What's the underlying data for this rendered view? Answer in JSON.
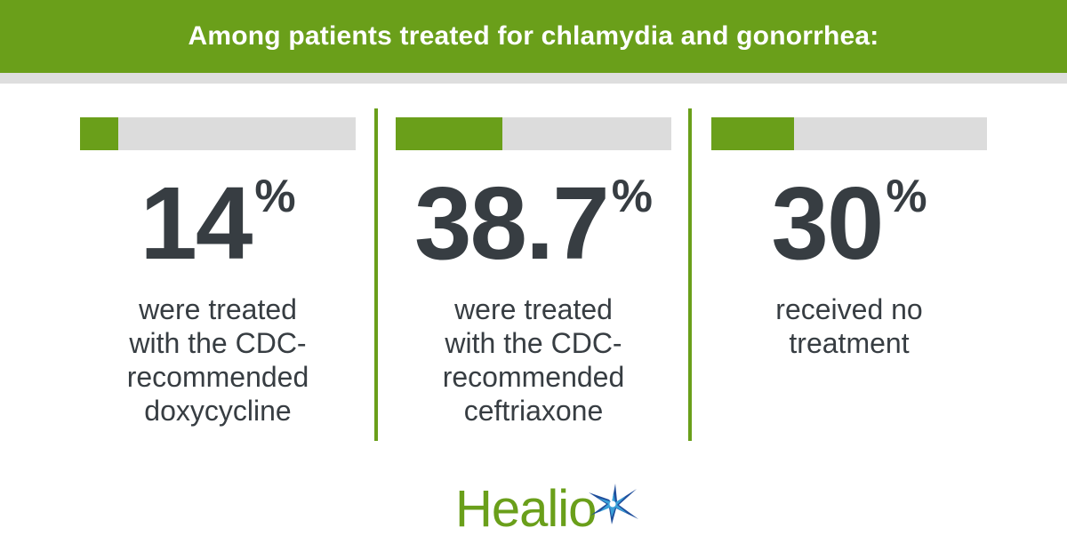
{
  "header": {
    "title": "Among patients treated for chlamydia and gonorrhea:"
  },
  "stats": [
    {
      "value": "14",
      "unit": "%",
      "caption": [
        "were treated",
        "with the CDC-",
        "recommended",
        "doxycycline"
      ]
    },
    {
      "value": "38.7",
      "unit": "%",
      "caption": [
        "were treated",
        "with the CDC-",
        "recommended",
        "ceftriaxone"
      ]
    },
    {
      "value": "30",
      "unit": "%",
      "caption": [
        "received no",
        "treatment"
      ]
    }
  ],
  "logo": {
    "text": "Healio",
    "icon": "healio-star-icon"
  },
  "colors": {
    "accent": "#6a9f1a",
    "track": "#dcdcdc",
    "text": "#373d42",
    "star_blue": "#1f4e9c",
    "star_light": "#3aa0d8"
  },
  "chart_data": {
    "type": "bar",
    "title": "Among patients treated for chlamydia and gonorrhea:",
    "categories": [
      "were treated with the CDC-recommended doxycycline",
      "were treated with the CDC-recommended ceftriaxone",
      "received no treatment"
    ],
    "values": [
      14,
      38.7,
      30
    ],
    "unit": "%",
    "ylim": [
      0,
      100
    ],
    "grid": false
  }
}
